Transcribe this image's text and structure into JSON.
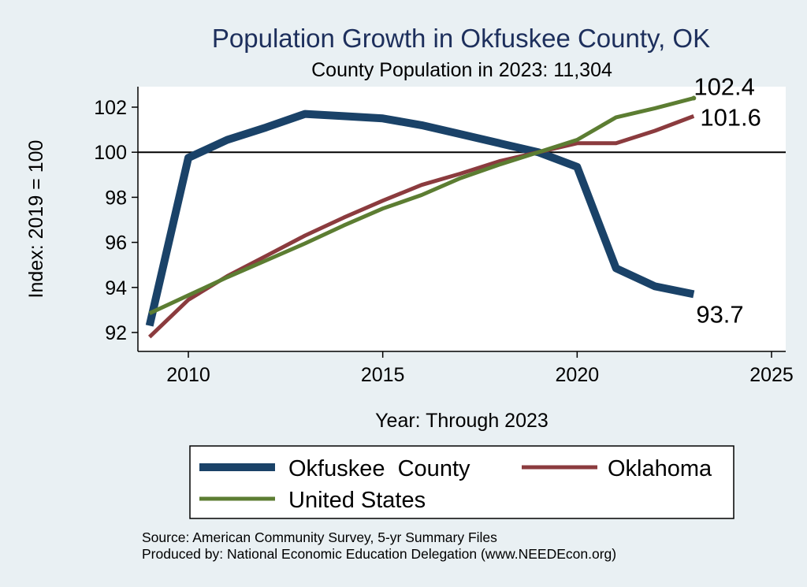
{
  "chart_data": {
    "type": "line",
    "title": "Population Growth in Okfuskee County, OK",
    "subtitle": "County Population in 2023: 11,304",
    "xlabel": "Year: Through 2023",
    "ylabel": "Index: 2019 = 100",
    "xlim": [
      2009,
      2025
    ],
    "ylim": [
      91.2,
      102.8
    ],
    "xticks": [
      2010,
      2015,
      2020,
      2025
    ],
    "yticks": [
      92,
      94,
      96,
      98,
      100,
      102
    ],
    "reference_line": 100,
    "grid": false,
    "legend": "bottom",
    "x": [
      2009,
      2010,
      2011,
      2012,
      2013,
      2014,
      2015,
      2016,
      2017,
      2018,
      2019,
      2020,
      2021,
      2022,
      2023
    ],
    "series": [
      {
        "name": "Okfuskee  County",
        "color": "#1a4268",
        "values": [
          92.3,
          99.75,
          100.55,
          101.1,
          101.7,
          101.6,
          101.5,
          101.2,
          100.8,
          100.4,
          100.0,
          99.35,
          94.85,
          94.05,
          93.7
        ],
        "end_label": "93.7"
      },
      {
        "name": "Oklahoma",
        "color": "#8b3b3e",
        "values": [
          91.8,
          93.45,
          94.5,
          95.4,
          96.3,
          97.1,
          97.85,
          98.55,
          99.05,
          99.6,
          100.0,
          100.4,
          100.4,
          100.95,
          101.6
        ],
        "end_label": "101.6"
      },
      {
        "name": "United States",
        "color": "#5c7d32",
        "values": [
          92.85,
          93.65,
          94.45,
          95.2,
          95.95,
          96.75,
          97.5,
          98.1,
          98.85,
          99.45,
          100.0,
          100.55,
          101.55,
          101.95,
          102.4
        ],
        "end_label": "102.4"
      }
    ]
  },
  "notes": {
    "source": "Source: American Community Survey, 5-yr Summary Files",
    "produced_by": "Produced by: National Economic Education Delegation (www.NEEDEcon.org)"
  }
}
